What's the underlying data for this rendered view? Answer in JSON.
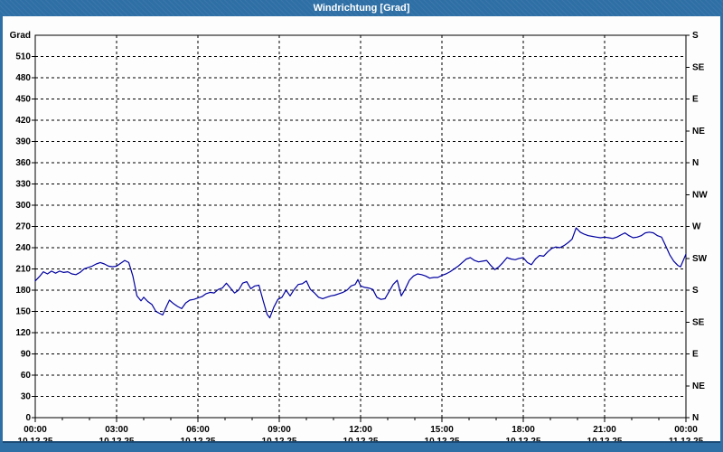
{
  "window": {
    "title": "Windrichtung [Grad]",
    "colors": {
      "frame": "#2E6FA5",
      "frame_dark": "#1A4A75",
      "plot_background": "#FFFFFF",
      "grid": "#000000",
      "line": "#0000A0",
      "title_text": "#FFFFFF"
    }
  },
  "chart_data": {
    "type": "line",
    "title": "Windrichtung [Grad]",
    "ylabel_left": "Grad",
    "ylim": [
      0,
      540
    ],
    "xlim_hours": [
      0,
      24
    ],
    "grid": "dashed",
    "legend": "none",
    "y_left_ticks": [
      0,
      30,
      60,
      90,
      120,
      150,
      180,
      210,
      240,
      270,
      300,
      330,
      360,
      390,
      420,
      450,
      480,
      510
    ],
    "y_right_ticks": [
      {
        "value": 540,
        "label": "S"
      },
      {
        "value": 495,
        "label": "SE"
      },
      {
        "value": 450,
        "label": "E"
      },
      {
        "value": 405,
        "label": "NE"
      },
      {
        "value": 360,
        "label": "N"
      },
      {
        "value": 315,
        "label": "NW"
      },
      {
        "value": 270,
        "label": "W"
      },
      {
        "value": 225,
        "label": "SW"
      },
      {
        "value": 180,
        "label": "S"
      },
      {
        "value": 135,
        "label": "SE"
      },
      {
        "value": 90,
        "label": "E"
      },
      {
        "value": 45,
        "label": "NE"
      },
      {
        "value": 0,
        "label": "N"
      }
    ],
    "x_ticks": [
      {
        "hour": 0,
        "time": "00:00",
        "date": "10.12.25"
      },
      {
        "hour": 3,
        "time": "03:00",
        "date": "10.12.25"
      },
      {
        "hour": 6,
        "time": "06:00",
        "date": "10.12.25"
      },
      {
        "hour": 9,
        "time": "09:00",
        "date": "10.12.25"
      },
      {
        "hour": 12,
        "time": "12:00",
        "date": "10.12.25"
      },
      {
        "hour": 15,
        "time": "15:00",
        "date": "10.12.25"
      },
      {
        "hour": 18,
        "time": "18:00",
        "date": "10.12.25"
      },
      {
        "hour": 21,
        "time": "21:00",
        "date": "10.12.25"
      },
      {
        "hour": 24,
        "time": "00:00",
        "date": "11.12.25"
      }
    ],
    "x_minor_tick_hours": 1,
    "y_grid_step": 30,
    "x_grid_step_hours": 3,
    "series": [
      {
        "name": "Windrichtung",
        "color": "#0000A0",
        "points": [
          [
            0.0,
            193
          ],
          [
            0.15,
            199
          ],
          [
            0.3,
            206
          ],
          [
            0.45,
            203
          ],
          [
            0.6,
            207
          ],
          [
            0.75,
            204
          ],
          [
            0.9,
            207
          ],
          [
            1.05,
            205
          ],
          [
            1.2,
            206
          ],
          [
            1.35,
            203
          ],
          [
            1.5,
            202
          ],
          [
            1.65,
            205
          ],
          [
            1.8,
            210
          ],
          [
            1.95,
            212
          ],
          [
            2.1,
            214
          ],
          [
            2.25,
            217
          ],
          [
            2.4,
            219
          ],
          [
            2.55,
            217
          ],
          [
            2.7,
            214
          ],
          [
            2.85,
            213
          ],
          [
            3.0,
            214
          ],
          [
            3.15,
            218
          ],
          [
            3.3,
            222
          ],
          [
            3.45,
            219
          ],
          [
            3.6,
            200
          ],
          [
            3.75,
            172
          ],
          [
            3.9,
            165
          ],
          [
            4.0,
            170
          ],
          [
            4.15,
            164
          ],
          [
            4.3,
            160
          ],
          [
            4.45,
            150
          ],
          [
            4.6,
            147
          ],
          [
            4.7,
            145
          ],
          [
            4.85,
            158
          ],
          [
            4.95,
            166
          ],
          [
            5.1,
            161
          ],
          [
            5.25,
            157
          ],
          [
            5.4,
            154
          ],
          [
            5.55,
            162
          ],
          [
            5.7,
            166
          ],
          [
            5.85,
            167
          ],
          [
            6.0,
            169
          ],
          [
            6.15,
            171
          ],
          [
            6.3,
            175
          ],
          [
            6.45,
            177
          ],
          [
            6.6,
            176
          ],
          [
            6.75,
            181
          ],
          [
            6.9,
            183
          ],
          [
            7.05,
            190
          ],
          [
            7.2,
            183
          ],
          [
            7.35,
            176
          ],
          [
            7.5,
            180
          ],
          [
            7.65,
            190
          ],
          [
            7.8,
            192
          ],
          [
            7.95,
            182
          ],
          [
            8.1,
            186
          ],
          [
            8.25,
            187
          ],
          [
            8.4,
            166
          ],
          [
            8.55,
            146
          ],
          [
            8.65,
            141
          ],
          [
            8.8,
            156
          ],
          [
            8.95,
            167
          ],
          [
            9.1,
            170
          ],
          [
            9.25,
            180
          ],
          [
            9.4,
            172
          ],
          [
            9.55,
            181
          ],
          [
            9.7,
            188
          ],
          [
            9.85,
            189
          ],
          [
            10.0,
            193
          ],
          [
            10.15,
            181
          ],
          [
            10.3,
            176
          ],
          [
            10.45,
            170
          ],
          [
            10.6,
            168
          ],
          [
            10.75,
            170
          ],
          [
            10.9,
            172
          ],
          [
            11.05,
            173
          ],
          [
            11.2,
            175
          ],
          [
            11.35,
            177
          ],
          [
            11.5,
            180
          ],
          [
            11.65,
            186
          ],
          [
            11.8,
            188
          ],
          [
            11.9,
            195
          ],
          [
            12.0,
            186
          ],
          [
            12.15,
            184
          ],
          [
            12.3,
            183
          ],
          [
            12.45,
            181
          ],
          [
            12.6,
            170
          ],
          [
            12.75,
            167
          ],
          [
            12.9,
            168
          ],
          [
            13.05,
            178
          ],
          [
            13.2,
            188
          ],
          [
            13.35,
            194
          ],
          [
            13.5,
            172
          ],
          [
            13.65,
            182
          ],
          [
            13.8,
            194
          ],
          [
            13.95,
            200
          ],
          [
            14.1,
            203
          ],
          [
            14.25,
            202
          ],
          [
            14.4,
            200
          ],
          [
            14.55,
            197
          ],
          [
            14.7,
            198
          ],
          [
            14.85,
            198
          ],
          [
            15.0,
            201
          ],
          [
            15.15,
            203
          ],
          [
            15.3,
            206
          ],
          [
            15.45,
            210
          ],
          [
            15.6,
            214
          ],
          [
            15.75,
            219
          ],
          [
            15.9,
            224
          ],
          [
            16.05,
            226
          ],
          [
            16.2,
            222
          ],
          [
            16.35,
            220
          ],
          [
            16.5,
            221
          ],
          [
            16.65,
            222
          ],
          [
            16.8,
            215
          ],
          [
            16.95,
            209
          ],
          [
            17.1,
            213
          ],
          [
            17.25,
            219
          ],
          [
            17.4,
            226
          ],
          [
            17.55,
            224
          ],
          [
            17.7,
            223
          ],
          [
            17.85,
            225
          ],
          [
            18.0,
            226
          ],
          [
            18.15,
            219
          ],
          [
            18.3,
            216
          ],
          [
            18.45,
            224
          ],
          [
            18.6,
            229
          ],
          [
            18.75,
            228
          ],
          [
            18.9,
            234
          ],
          [
            19.05,
            239
          ],
          [
            19.2,
            241
          ],
          [
            19.35,
            240
          ],
          [
            19.5,
            243
          ],
          [
            19.65,
            247
          ],
          [
            19.8,
            252
          ],
          [
            19.95,
            268
          ],
          [
            20.1,
            262
          ],
          [
            20.25,
            259
          ],
          [
            20.4,
            257
          ],
          [
            20.55,
            256
          ],
          [
            20.7,
            255
          ],
          [
            20.85,
            254
          ],
          [
            21.0,
            255
          ],
          [
            21.15,
            254
          ],
          [
            21.3,
            253
          ],
          [
            21.45,
            255
          ],
          [
            21.6,
            258
          ],
          [
            21.75,
            261
          ],
          [
            21.9,
            257
          ],
          [
            22.05,
            254
          ],
          [
            22.2,
            255
          ],
          [
            22.35,
            257
          ],
          [
            22.5,
            261
          ],
          [
            22.65,
            262
          ],
          [
            22.8,
            261
          ],
          [
            22.95,
            257
          ],
          [
            23.1,
            255
          ],
          [
            23.25,
            243
          ],
          [
            23.4,
            230
          ],
          [
            23.55,
            221
          ],
          [
            23.7,
            215
          ],
          [
            23.8,
            213
          ],
          [
            23.9,
            222
          ],
          [
            24.0,
            231
          ]
        ]
      }
    ]
  }
}
